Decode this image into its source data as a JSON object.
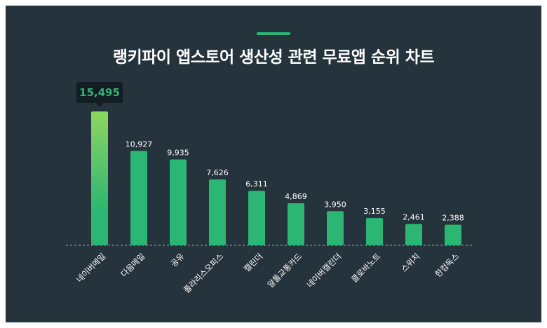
{
  "header": {
    "title": "랭키파이 앱스토어 생산성 관련 무료앱 순위 차트"
  },
  "colors": {
    "background": "#25333d",
    "bar": "#2bb673",
    "bar_top_highlight": "#8ed660",
    "accent": "#2bb673",
    "tooltip_bg": "#131d24",
    "tooltip_text": "#2bb673",
    "baseline": "#9aa5ad"
  },
  "chart_data": {
    "type": "bar",
    "categories": [
      "네이버메일",
      "다음메일",
      "공유",
      "폴라리스오피스",
      "캘린더",
      "알툴교통카드",
      "네이버캘린더",
      "클로바노트",
      "스위치",
      "한컴독스"
    ],
    "values": [
      15495,
      10927,
      9935,
      7626,
      6311,
      4869,
      3950,
      3155,
      2461,
      2388
    ],
    "value_labels": [
      "15,495",
      "10,927",
      "9,935",
      "7,626",
      "6,311",
      "4,869",
      "3,950",
      "3,155",
      "2,461",
      "2,388"
    ],
    "highlight_index": 0,
    "title": "랭키파이 앱스토어 생산성 관련 무료앱 순위 차트",
    "xlabel": "",
    "ylabel": "",
    "ylim": [
      0,
      15495
    ],
    "grid": false,
    "legend": "none"
  }
}
